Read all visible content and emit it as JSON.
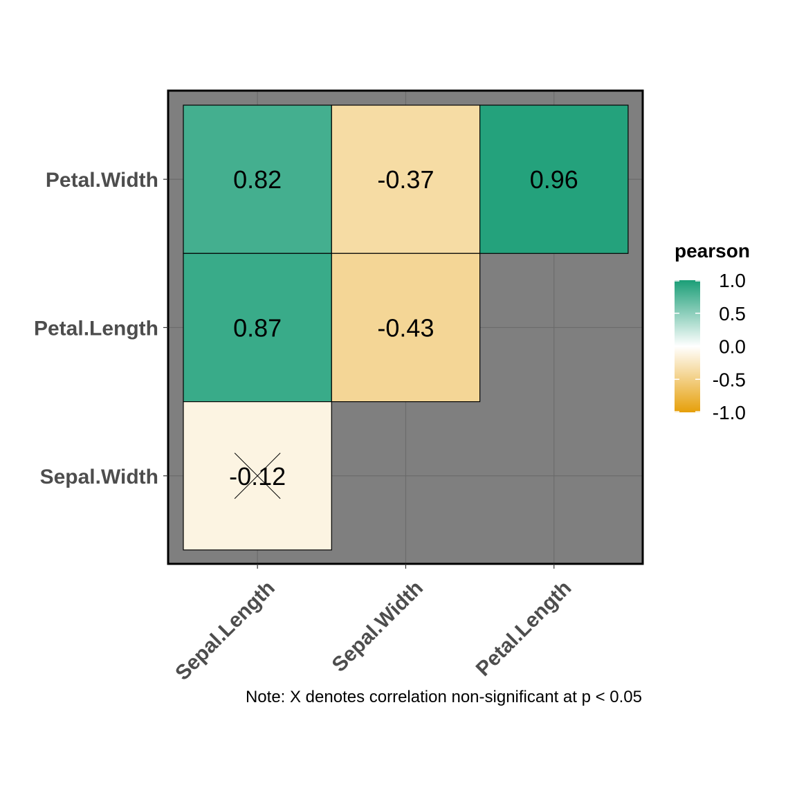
{
  "chart_data": {
    "type": "heatmap",
    "method": "pearson",
    "x_categories": [
      "Sepal.Length",
      "Sepal.Width",
      "Petal.Length"
    ],
    "y_categories": [
      "Sepal.Width",
      "Petal.Length",
      "Petal.Width"
    ],
    "cells": [
      {
        "x": "Sepal.Length",
        "y": "Petal.Width",
        "value": 0.82,
        "label": "0.82",
        "significant": true
      },
      {
        "x": "Sepal.Width",
        "y": "Petal.Width",
        "value": -0.37,
        "label": "-0.37",
        "significant": true
      },
      {
        "x": "Petal.Length",
        "y": "Petal.Width",
        "value": 0.96,
        "label": "0.96",
        "significant": true
      },
      {
        "x": "Sepal.Length",
        "y": "Petal.Length",
        "value": 0.87,
        "label": "0.87",
        "significant": true
      },
      {
        "x": "Sepal.Width",
        "y": "Petal.Length",
        "value": -0.43,
        "label": "-0.43",
        "significant": true
      },
      {
        "x": "Sepal.Length",
        "y": "Sepal.Width",
        "value": -0.12,
        "label": "-0.12",
        "significant": false
      }
    ],
    "legend": {
      "title": "pearson",
      "ticks": [
        {
          "value": 1.0,
          "label": "1.0"
        },
        {
          "value": 0.5,
          "label": "0.5"
        },
        {
          "value": 0.0,
          "label": "0.0"
        },
        {
          "value": -0.5,
          "label": "-0.5"
        },
        {
          "value": -1.0,
          "label": "-1.0"
        }
      ],
      "range": [
        -1,
        1
      ],
      "placement": "right"
    },
    "caption": "Note: X denotes correlation non-significant at p < 0.05",
    "colors": {
      "high": "#1b9e77",
      "mid": "#ffffff",
      "low": "#e6a00a",
      "panel_background": "#7f7f7f",
      "grid": "#6b6b6b"
    },
    "grid": true
  }
}
